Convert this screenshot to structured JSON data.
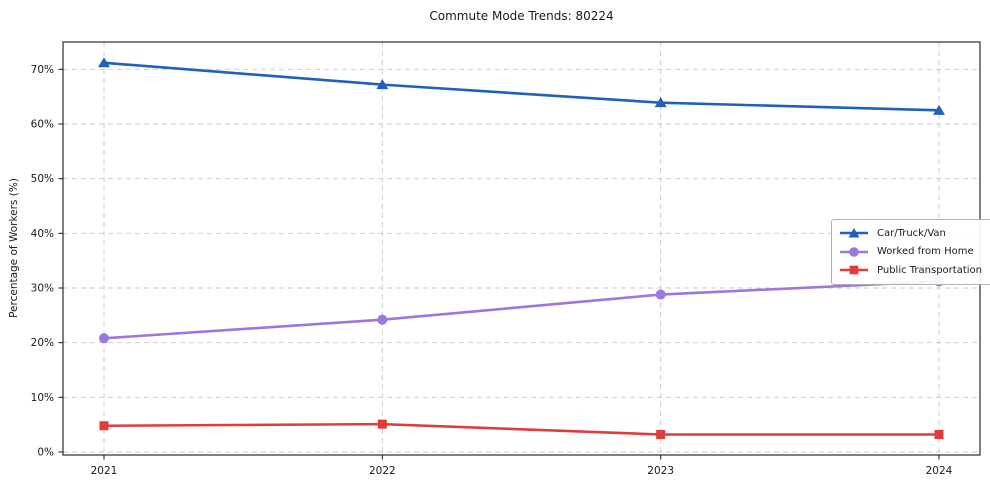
{
  "chart_data": {
    "type": "line",
    "title": "Commute Mode Trends: 80224",
    "xlabel": "",
    "ylabel": "Percentage of Workers (%)",
    "categories": [
      "2021",
      "2022",
      "2023",
      "2024"
    ],
    "series": [
      {
        "name": "Car/Truck/Van",
        "values": [
          71.2,
          67.2,
          63.9,
          62.5
        ],
        "color": "#2062b9",
        "marker": "triangle"
      },
      {
        "name": "Worked from Home",
        "values": [
          20.8,
          24.2,
          28.8,
          31.2
        ],
        "color": "#9c77dd",
        "marker": "circle"
      },
      {
        "name": "Public Transportation",
        "values": [
          4.8,
          5.1,
          3.2,
          3.2
        ],
        "color": "#e03c3c",
        "marker": "square"
      }
    ],
    "ylim": [
      0,
      75
    ],
    "yticks": [
      0,
      10,
      20,
      30,
      40,
      50,
      60,
      70
    ],
    "ytick_labels": [
      "0%",
      "10%",
      "20%",
      "30%",
      "40%",
      "50%",
      "60%",
      "70%"
    ],
    "grid": true,
    "grid_style": "dashed",
    "legend_position": "center right",
    "colors": {
      "grid": "#c9c9c9",
      "spine": "#2b2b2b",
      "tick_text": "#1a1a1a",
      "background": "#ffffff"
    }
  }
}
